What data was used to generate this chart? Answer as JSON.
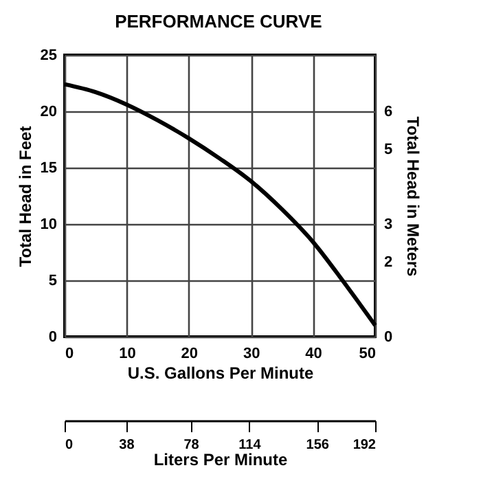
{
  "chart_data": {
    "type": "line",
    "title": "PERFORMANCE CURVE",
    "xlabel": "U.S. Gallons Per Minute",
    "ylabel": "Total Head in Feet",
    "y2label": "Total Head in Meters",
    "x2label": "Liters Per Minute",
    "x": [
      0,
      5,
      10,
      15,
      20,
      25,
      30,
      35,
      40,
      45,
      50
    ],
    "series": [
      {
        "color": "#000000",
        "values": [
          22.4,
          21.7,
          20.6,
          19.2,
          17.6,
          15.8,
          13.8,
          11.3,
          8.4,
          4.8,
          1.0
        ]
      }
    ],
    "xlim": [
      0,
      50
    ],
    "xticks": [
      0,
      10,
      20,
      30,
      40,
      50
    ],
    "ylim": [
      0,
      25
    ],
    "yticks": [
      0,
      5,
      10,
      15,
      20,
      25
    ],
    "y2lim": [
      0,
      7.5
    ],
    "y2ticks": [
      0,
      2,
      3,
      5,
      6
    ],
    "x2lim": [
      0,
      192
    ],
    "x2ticks": [
      0,
      38,
      78,
      114,
      156,
      192
    ],
    "grid": true,
    "marker": "none",
    "line_style": "solid"
  }
}
